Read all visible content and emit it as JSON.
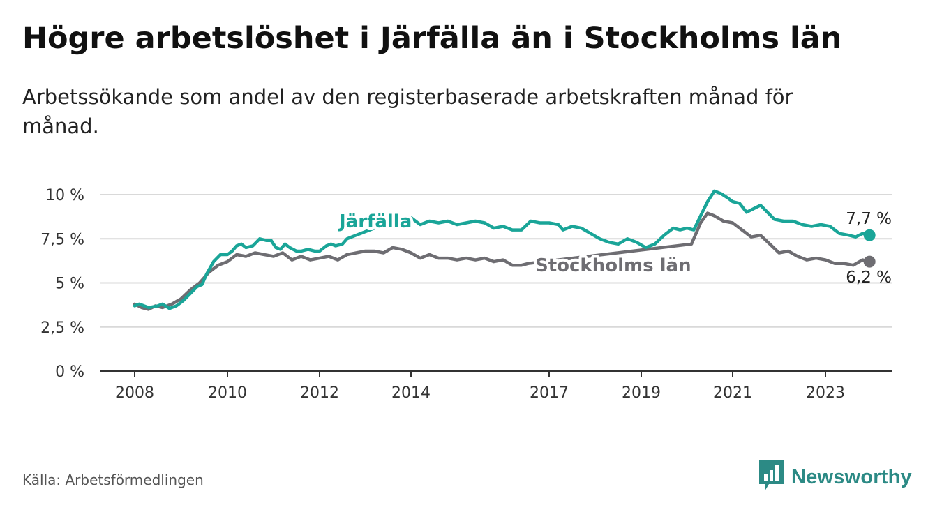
{
  "title": "Högre arbetslöshet i Järfälla än i Stockholms län",
  "subtitle": "Arbetssökande som andel av den registerbaserade arbetskraften månad för månad.",
  "source": "Källa: Arbetsförmedlingen",
  "logo": {
    "text": "Newsworthy",
    "icon": "bar-chart-logo-icon"
  },
  "colors": {
    "jarfalla": "#1aa598",
    "stockholm": "#6e6d72",
    "grid": "#d9d9d9",
    "axis": "#333333"
  },
  "chart_data": {
    "type": "line",
    "title": "Högre arbetslöshet i Järfälla än i Stockholms län",
    "xlabel": "",
    "ylabel": "",
    "xlim": [
      2008.0,
      2024.5
    ],
    "ylim": [
      0,
      10
    ],
    "yticks": [
      0,
      2.5,
      5,
      7.5,
      10
    ],
    "ytick_labels": [
      "0 %",
      "2,5 %",
      "5 %",
      "7,5 %",
      "10 %"
    ],
    "xticks": [
      2008,
      2010,
      2012,
      2014,
      2017,
      2019,
      2021,
      2023
    ],
    "xtick_labels": [
      "2008",
      "2010",
      "2012",
      "2014",
      "2017",
      "2019",
      "2021",
      "2023"
    ],
    "series": [
      {
        "name": "Järfälla",
        "color": "#1aa598",
        "end_label": "7,7 %",
        "points": [
          [
            2008.0,
            3.7
          ],
          [
            2008.1,
            3.8
          ],
          [
            2008.3,
            3.6
          ],
          [
            2008.5,
            3.7
          ],
          [
            2008.6,
            3.8
          ],
          [
            2008.75,
            3.55
          ],
          [
            2008.9,
            3.7
          ],
          [
            2009.05,
            4.0
          ],
          [
            2009.2,
            4.4
          ],
          [
            2009.35,
            4.8
          ],
          [
            2009.45,
            4.9
          ],
          [
            2009.55,
            5.5
          ],
          [
            2009.7,
            6.2
          ],
          [
            2009.85,
            6.6
          ],
          [
            2010.0,
            6.6
          ],
          [
            2010.1,
            6.8
          ],
          [
            2010.2,
            7.1
          ],
          [
            2010.3,
            7.2
          ],
          [
            2010.4,
            7.0
          ],
          [
            2010.55,
            7.1
          ],
          [
            2010.7,
            7.5
          ],
          [
            2010.85,
            7.4
          ],
          [
            2010.95,
            7.4
          ],
          [
            2011.05,
            7.0
          ],
          [
            2011.15,
            6.9
          ],
          [
            2011.25,
            7.2
          ],
          [
            2011.35,
            7.0
          ],
          [
            2011.5,
            6.8
          ],
          [
            2011.6,
            6.8
          ],
          [
            2011.75,
            6.9
          ],
          [
            2011.9,
            6.8
          ],
          [
            2012.0,
            6.8
          ],
          [
            2012.15,
            7.1
          ],
          [
            2012.25,
            7.2
          ],
          [
            2012.35,
            7.1
          ],
          [
            2012.5,
            7.2
          ],
          [
            2012.6,
            7.5
          ],
          [
            2012.7,
            7.6
          ],
          [
            2013.6,
            8.5
          ],
          [
            2013.8,
            8.6
          ],
          [
            2014.0,
            8.7
          ],
          [
            2014.2,
            8.3
          ],
          [
            2014.4,
            8.5
          ],
          [
            2014.6,
            8.4
          ],
          [
            2014.8,
            8.5
          ],
          [
            2015.0,
            8.3
          ],
          [
            2015.2,
            8.4
          ],
          [
            2015.4,
            8.5
          ],
          [
            2015.6,
            8.4
          ],
          [
            2015.8,
            8.1
          ],
          [
            2016.0,
            8.2
          ],
          [
            2016.2,
            8.0
          ],
          [
            2016.4,
            8.0
          ],
          [
            2016.6,
            8.5
          ],
          [
            2016.8,
            8.4
          ],
          [
            2017.0,
            8.4
          ],
          [
            2017.2,
            8.3
          ],
          [
            2017.3,
            8.0
          ],
          [
            2017.5,
            8.2
          ],
          [
            2017.7,
            8.1
          ],
          [
            2017.9,
            7.8
          ],
          [
            2018.1,
            7.5
          ],
          [
            2018.3,
            7.3
          ],
          [
            2018.5,
            7.2
          ],
          [
            2018.7,
            7.5
          ],
          [
            2018.9,
            7.3
          ],
          [
            2019.1,
            7.0
          ],
          [
            2019.3,
            7.2
          ],
          [
            2019.5,
            7.7
          ],
          [
            2019.7,
            8.1
          ],
          [
            2019.85,
            8.0
          ],
          [
            2020.0,
            8.1
          ],
          [
            2020.15,
            8.0
          ],
          [
            2020.3,
            8.8
          ],
          [
            2020.45,
            9.6
          ],
          [
            2020.6,
            10.2
          ],
          [
            2020.75,
            10.05
          ],
          [
            2020.9,
            9.8
          ],
          [
            2021.0,
            9.6
          ],
          [
            2021.15,
            9.5
          ],
          [
            2021.3,
            9.0
          ],
          [
            2021.45,
            9.2
          ],
          [
            2021.6,
            9.4
          ],
          [
            2021.75,
            9.0
          ],
          [
            2021.9,
            8.6
          ],
          [
            2022.1,
            8.5
          ],
          [
            2022.3,
            8.5
          ],
          [
            2022.5,
            8.3
          ],
          [
            2022.7,
            8.2
          ],
          [
            2022.9,
            8.3
          ],
          [
            2023.1,
            8.2
          ],
          [
            2023.3,
            7.8
          ],
          [
            2023.5,
            7.7
          ],
          [
            2023.65,
            7.6
          ],
          [
            2023.8,
            7.8
          ],
          [
            2023.95,
            7.7
          ]
        ]
      },
      {
        "name": "Stockholms län",
        "color": "#6e6d72",
        "end_label": "6,2 %",
        "points": [
          [
            2008.0,
            3.8
          ],
          [
            2008.15,
            3.6
          ],
          [
            2008.3,
            3.5
          ],
          [
            2008.45,
            3.7
          ],
          [
            2008.6,
            3.6
          ],
          [
            2008.8,
            3.8
          ],
          [
            2009.0,
            4.1
          ],
          [
            2009.2,
            4.6
          ],
          [
            2009.4,
            5.0
          ],
          [
            2009.6,
            5.6
          ],
          [
            2009.8,
            6.0
          ],
          [
            2010.0,
            6.2
          ],
          [
            2010.2,
            6.6
          ],
          [
            2010.4,
            6.5
          ],
          [
            2010.6,
            6.7
          ],
          [
            2010.8,
            6.6
          ],
          [
            2011.0,
            6.5
          ],
          [
            2011.2,
            6.7
          ],
          [
            2011.4,
            6.3
          ],
          [
            2011.6,
            6.5
          ],
          [
            2011.8,
            6.3
          ],
          [
            2012.0,
            6.4
          ],
          [
            2012.2,
            6.5
          ],
          [
            2012.4,
            6.3
          ],
          [
            2012.6,
            6.6
          ],
          [
            2012.8,
            6.7
          ],
          [
            2013.0,
            6.8
          ],
          [
            2013.2,
            6.8
          ],
          [
            2013.4,
            6.7
          ],
          [
            2013.6,
            7.0
          ],
          [
            2013.8,
            6.9
          ],
          [
            2014.0,
            6.7
          ],
          [
            2014.2,
            6.4
          ],
          [
            2014.4,
            6.6
          ],
          [
            2014.6,
            6.4
          ],
          [
            2014.8,
            6.4
          ],
          [
            2015.0,
            6.3
          ],
          [
            2015.2,
            6.4
          ],
          [
            2015.4,
            6.3
          ],
          [
            2015.6,
            6.4
          ],
          [
            2015.8,
            6.2
          ],
          [
            2016.0,
            6.3
          ],
          [
            2016.2,
            6.0
          ],
          [
            2016.4,
            6.0
          ],
          [
            2016.55,
            6.1
          ],
          [
            2020.1,
            7.2
          ],
          [
            2020.3,
            8.4
          ],
          [
            2020.45,
            8.95
          ],
          [
            2020.6,
            8.8
          ],
          [
            2020.8,
            8.5
          ],
          [
            2021.0,
            8.4
          ],
          [
            2021.2,
            8.0
          ],
          [
            2021.4,
            7.6
          ],
          [
            2021.6,
            7.7
          ],
          [
            2021.8,
            7.2
          ],
          [
            2022.0,
            6.7
          ],
          [
            2022.2,
            6.8
          ],
          [
            2022.4,
            6.5
          ],
          [
            2022.6,
            6.3
          ],
          [
            2022.8,
            6.4
          ],
          [
            2023.0,
            6.3
          ],
          [
            2023.2,
            6.1
          ],
          [
            2023.4,
            6.1
          ],
          [
            2023.6,
            6.0
          ],
          [
            2023.8,
            6.3
          ],
          [
            2023.95,
            6.2
          ]
        ]
      }
    ],
    "annotations": [
      {
        "text": "Järfälla",
        "series": "Järfälla",
        "anchor": [
          2013.1,
          8.6
        ]
      },
      {
        "text": "Stockholms län",
        "series": "Stockholms län",
        "anchor": [
          2018.3,
          6.1
        ]
      }
    ]
  }
}
